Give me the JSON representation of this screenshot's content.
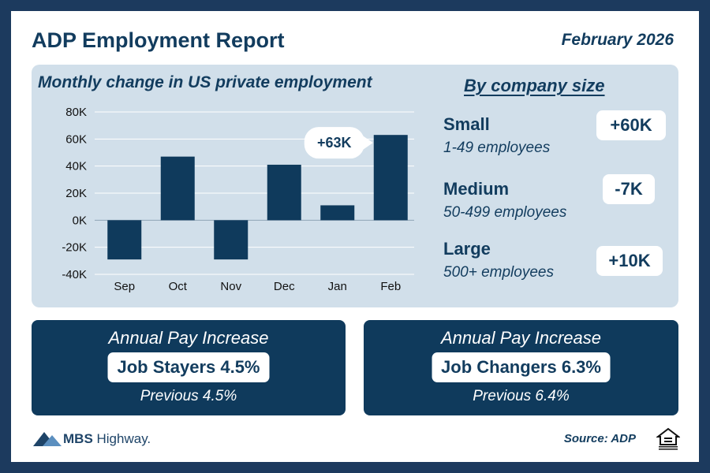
{
  "header": {
    "title": "ADP Employment Report",
    "date": "February 2026"
  },
  "chart_data": {
    "type": "bar",
    "title": "Monthly change in US private employment",
    "categories": [
      "Sep",
      "Oct",
      "Nov",
      "Dec",
      "Jan",
      "Feb"
    ],
    "values": [
      -29,
      47,
      -29,
      41,
      11,
      63
    ],
    "unit": "K",
    "ylim": [
      -40,
      80
    ],
    "yticks": [
      "80K",
      "60K",
      "40K",
      "20K",
      "0K",
      "-20K",
      "-40K"
    ],
    "ytick_values": [
      80,
      60,
      40,
      20,
      0,
      -20,
      -40
    ],
    "grid": true,
    "bar_color": "#0f3a5c",
    "callout": {
      "category": "Feb",
      "label": "+63K"
    }
  },
  "company_size": {
    "title": "By company size",
    "segments": [
      {
        "name": "Small",
        "desc": "1-49 employees",
        "value": "+60K"
      },
      {
        "name": "Medium",
        "desc": "50-499 employees",
        "value": "-7K"
      },
      {
        "name": "Large",
        "desc": "500+ employees",
        "value": "+10K"
      }
    ]
  },
  "pay": {
    "stayers": {
      "heading": "Annual Pay Increase",
      "label": "Job Stayers 4.5%",
      "previous": "Previous 4.5%"
    },
    "changers": {
      "heading": "Annual Pay Increase",
      "label": "Job Changers 6.3%",
      "previous": "Previous 6.4%"
    }
  },
  "footer": {
    "logo_bold": "MBS",
    "logo_rest": " Highway.",
    "source": "Source: ADP",
    "eho_icon": "equal-housing-opportunity-icon"
  },
  "colors": {
    "navy": "#0f3a5c",
    "panel": "#d1dfea",
    "frame": "#1c3a5e"
  }
}
